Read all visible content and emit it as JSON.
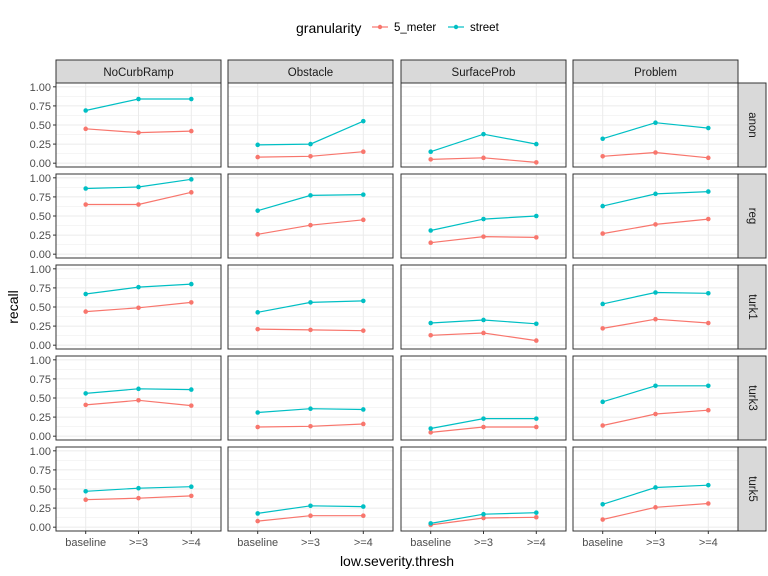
{
  "chart_data": {
    "type": "line",
    "title": "",
    "xlabel": "low.severity.thresh",
    "ylabel": "recall",
    "legend_title": "granularity",
    "legend_position": "top",
    "x_categories": [
      "baseline",
      ">=3",
      ">=4"
    ],
    "ylim": [
      0,
      1
    ],
    "y_ticks": [
      "0.00",
      "0.25",
      "0.50",
      "0.75",
      "1.00"
    ],
    "columns": [
      "NoCurbRamp",
      "Obstacle",
      "SurfaceProb",
      "Problem"
    ],
    "rows": [
      "anon",
      "reg",
      "turk1",
      "turk3",
      "turk5"
    ],
    "series": [
      {
        "name": "5_meter",
        "color": "#F8766D"
      },
      {
        "name": "street",
        "color": "#00BFC4"
      }
    ],
    "panels": [
      {
        "row": "anon",
        "column": "NoCurbRamp",
        "5_meter": [
          0.45,
          0.4,
          0.42
        ],
        "street": [
          0.69,
          0.84,
          0.84
        ]
      },
      {
        "row": "anon",
        "column": "Obstacle",
        "5_meter": [
          0.08,
          0.09,
          0.15
        ],
        "street": [
          0.24,
          0.25,
          0.55
        ]
      },
      {
        "row": "anon",
        "column": "SurfaceProb",
        "5_meter": [
          0.05,
          0.07,
          0.01
        ],
        "street": [
          0.15,
          0.38,
          0.25
        ]
      },
      {
        "row": "anon",
        "column": "Problem",
        "5_meter": [
          0.09,
          0.14,
          0.07
        ],
        "street": [
          0.32,
          0.53,
          0.46
        ]
      },
      {
        "row": "reg",
        "column": "NoCurbRamp",
        "5_meter": [
          0.65,
          0.65,
          0.81
        ],
        "street": [
          0.86,
          0.88,
          0.98
        ]
      },
      {
        "row": "reg",
        "column": "Obstacle",
        "5_meter": [
          0.26,
          0.38,
          0.45
        ],
        "street": [
          0.57,
          0.77,
          0.78
        ]
      },
      {
        "row": "reg",
        "column": "SurfaceProb",
        "5_meter": [
          0.15,
          0.23,
          0.22
        ],
        "street": [
          0.31,
          0.46,
          0.5
        ]
      },
      {
        "row": "reg",
        "column": "Problem",
        "5_meter": [
          0.27,
          0.39,
          0.46
        ],
        "street": [
          0.63,
          0.79,
          0.82
        ]
      },
      {
        "row": "turk1",
        "column": "NoCurbRamp",
        "5_meter": [
          0.44,
          0.49,
          0.56
        ],
        "street": [
          0.67,
          0.76,
          0.8
        ]
      },
      {
        "row": "turk1",
        "column": "Obstacle",
        "5_meter": [
          0.21,
          0.2,
          0.19
        ],
        "street": [
          0.43,
          0.56,
          0.58
        ]
      },
      {
        "row": "turk1",
        "column": "SurfaceProb",
        "5_meter": [
          0.13,
          0.16,
          0.06
        ],
        "street": [
          0.29,
          0.33,
          0.28
        ]
      },
      {
        "row": "turk1",
        "column": "Problem",
        "5_meter": [
          0.22,
          0.34,
          0.29
        ],
        "street": [
          0.54,
          0.69,
          0.68
        ]
      },
      {
        "row": "turk3",
        "column": "NoCurbRamp",
        "5_meter": [
          0.41,
          0.47,
          0.4
        ],
        "street": [
          0.56,
          0.62,
          0.61
        ]
      },
      {
        "row": "turk3",
        "column": "Obstacle",
        "5_meter": [
          0.12,
          0.13,
          0.16
        ],
        "street": [
          0.31,
          0.36,
          0.35
        ]
      },
      {
        "row": "turk3",
        "column": "SurfaceProb",
        "5_meter": [
          0.05,
          0.12,
          0.12
        ],
        "street": [
          0.1,
          0.23,
          0.23
        ]
      },
      {
        "row": "turk3",
        "column": "Problem",
        "5_meter": [
          0.14,
          0.29,
          0.34
        ],
        "street": [
          0.45,
          0.66,
          0.66
        ]
      },
      {
        "row": "turk5",
        "column": "NoCurbRamp",
        "5_meter": [
          0.36,
          0.38,
          0.41
        ],
        "street": [
          0.47,
          0.51,
          0.53
        ]
      },
      {
        "row": "turk5",
        "column": "Obstacle",
        "5_meter": [
          0.08,
          0.15,
          0.15
        ],
        "street": [
          0.18,
          0.28,
          0.27
        ]
      },
      {
        "row": "turk5",
        "column": "SurfaceProb",
        "5_meter": [
          0.03,
          0.12,
          0.13
        ],
        "street": [
          0.05,
          0.17,
          0.19
        ]
      },
      {
        "row": "turk5",
        "column": "Problem",
        "5_meter": [
          0.1,
          0.26,
          0.31
        ],
        "street": [
          0.3,
          0.52,
          0.55
        ]
      }
    ]
  }
}
